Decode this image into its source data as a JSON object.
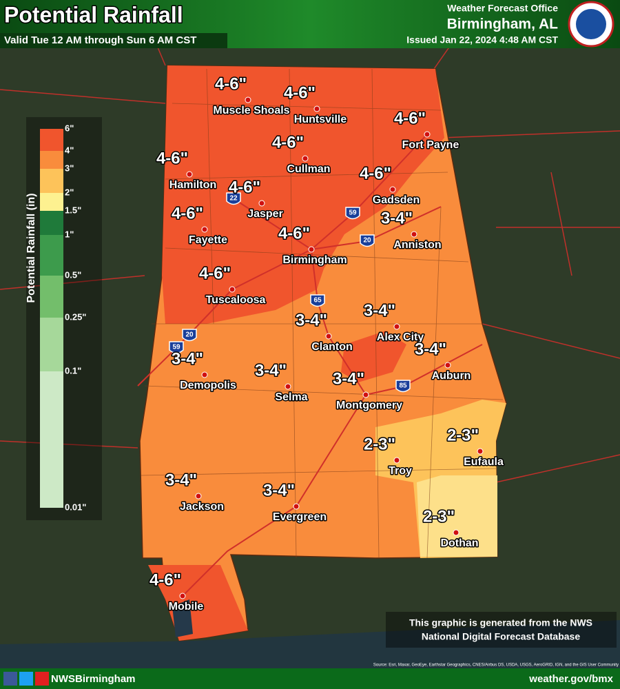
{
  "header": {
    "title": "Potential Rainfall",
    "valid": "Valid Tue 12 AM through Sun 6 AM CST",
    "office": "Weather Forecast Office",
    "city": "Birmingham, AL",
    "issued": "Issued Jan 22, 2024 4:48 AM CST"
  },
  "legend": {
    "title": "Potential Rainfall (in)",
    "labels": [
      "6\"",
      "4\"",
      "3\"",
      "2\"",
      "1.5\"",
      "1\"",
      "0.5\"",
      "0.25\"",
      "0.1\"",
      "0.01\""
    ],
    "colors": [
      "#f0552d",
      "#f98c3c",
      "#fdc35a",
      "#fdf190",
      "#1f7a3a",
      "#3d9b4c",
      "#73be6b",
      "#a6d89a",
      "#cde9c6"
    ]
  },
  "cities": [
    {
      "name": "Muscle Shoals",
      "amount": "4-6\""
    },
    {
      "name": "Huntsville",
      "amount": "4-6\""
    },
    {
      "name": "Fort Payne",
      "amount": "4-6\""
    },
    {
      "name": "Cullman",
      "amount": "4-6\""
    },
    {
      "name": "Hamilton",
      "amount": "4-6\""
    },
    {
      "name": "Gadsden",
      "amount": "4-6\""
    },
    {
      "name": "Jasper",
      "amount": "4-6\""
    },
    {
      "name": "Fayette",
      "amount": "4-6\""
    },
    {
      "name": "Anniston",
      "amount": "3-4\""
    },
    {
      "name": "Birmingham",
      "amount": "4-6\""
    },
    {
      "name": "Tuscaloosa",
      "amount": "4-6\""
    },
    {
      "name": "Alex City",
      "amount": "3-4\""
    },
    {
      "name": "Clanton",
      "amount": "3-4\""
    },
    {
      "name": "Auburn",
      "amount": "3-4\""
    },
    {
      "name": "Demopolis",
      "amount": "3-4\""
    },
    {
      "name": "Selma",
      "amount": "3-4\""
    },
    {
      "name": "Montgomery",
      "amount": "3-4\""
    },
    {
      "name": "Troy",
      "amount": "2-3\""
    },
    {
      "name": "Eufaula",
      "amount": "2-3\""
    },
    {
      "name": "Jackson",
      "amount": "3-4\""
    },
    {
      "name": "Evergreen",
      "amount": "3-4\""
    },
    {
      "name": "Dothan",
      "amount": "2-3\""
    },
    {
      "name": "Mobile",
      "amount": "4-6\""
    }
  ],
  "interstates": [
    "22",
    "59",
    "20",
    "65",
    "20",
    "59",
    "85"
  ],
  "footer": {
    "disclaimer": [
      "This graphic is generated from the NWS",
      "National Digital Forecast Database"
    ],
    "source": "Source: Esri, Maxar, GeoEye, Earthstar Geographics, CNES/Airbus DS, USDA, USGS, AeroGRID, IGN, and the GIS User Community",
    "social": "NWSBirmingham",
    "url": "weather.gov/bmx"
  }
}
